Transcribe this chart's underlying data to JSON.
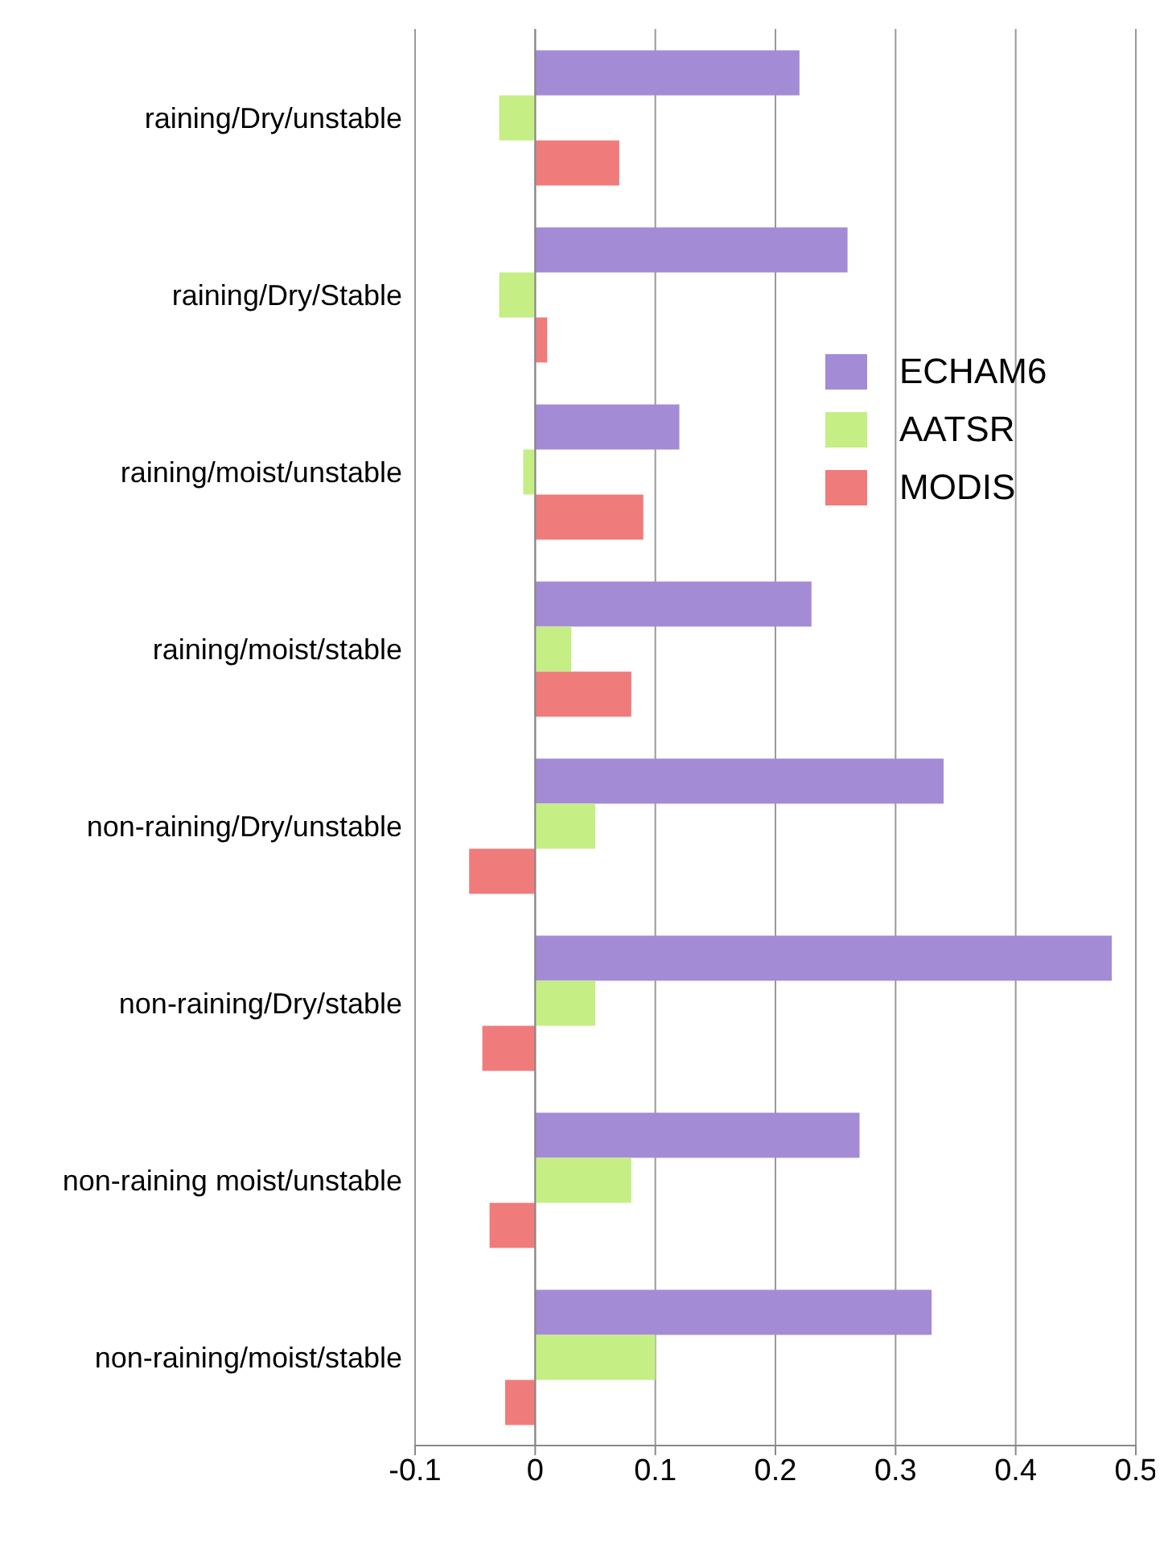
{
  "chart_data": {
    "type": "bar",
    "orientation": "horizontal",
    "categories": [
      "raining/Dry/unstable",
      "raining/Dry/Stable",
      "raining/moist/unstable",
      "raining/moist/stable",
      "non-raining/Dry/unstable",
      "non-raining/Dry/stable",
      "non-raining moist/unstable",
      "non-raining/moist/stable"
    ],
    "series": [
      {
        "name": "ECHAM6",
        "color": "#a38bd6",
        "values": [
          0.22,
          0.26,
          0.12,
          0.23,
          0.34,
          0.48,
          0.27,
          0.33
        ]
      },
      {
        "name": "AATSR",
        "color": "#c5ee85",
        "values": [
          -0.03,
          -0.03,
          -0.01,
          0.03,
          0.05,
          0.05,
          0.08,
          0.1
        ]
      },
      {
        "name": "MODIS",
        "color": "#ef7b7b",
        "values": [
          0.07,
          0.01,
          0.09,
          0.08,
          -0.055,
          -0.044,
          -0.038,
          -0.025
        ]
      }
    ],
    "xlim": [
      -0.1,
      0.5
    ],
    "xticks": [
      -0.1,
      0,
      0.1,
      0.2,
      0.3,
      0.4,
      0.5
    ],
    "grid": "x",
    "legend": "right"
  }
}
